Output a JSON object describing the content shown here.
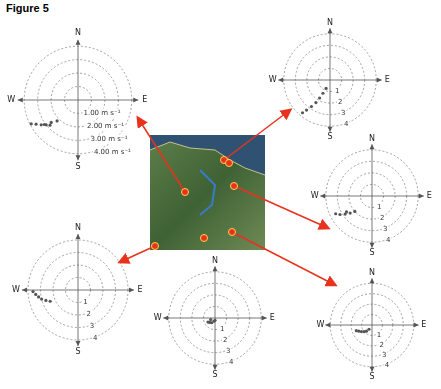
{
  "figure_label": "Figure 5",
  "chart_data": [
    {
      "type": "polar_scatter",
      "compass": [
        "N",
        "E",
        "S",
        "W"
      ],
      "rlim": [
        0,
        4
      ],
      "rticks": [
        {
          "value": 1,
          "label": "1.00 m s⁻¹"
        },
        {
          "value": 2,
          "label": "2.00 m s⁻¹"
        },
        {
          "value": 3,
          "label": "3.00 m s⁻¹"
        },
        {
          "value": 4,
          "label": "4.00 m s⁻¹"
        }
      ],
      "theta": [
        225,
        230,
        232,
        236,
        240,
        243,
        228,
        234
      ],
      "r": [
        2.2,
        2.6,
        3.0,
        3.3,
        3.6,
        3.9,
        2.8,
        3.1
      ],
      "color": "#555555",
      "marker": "circle",
      "grid": true
    },
    {
      "type": "polar_scatter",
      "compass": [
        "N",
        "E",
        "S",
        "W"
      ],
      "rlim": [
        0,
        4
      ],
      "rticks": [
        1,
        2,
        3,
        4
      ],
      "theta": [
        205,
        208,
        210,
        212,
        215,
        218,
        220
      ],
      "r": [
        0.8,
        1.3,
        1.8,
        2.3,
        2.8,
        3.3,
        3.7
      ],
      "color": "#555555",
      "marker": "circle",
      "grid": true
    },
    {
      "type": "polar_scatter",
      "compass": [
        "N",
        "E",
        "S",
        "W"
      ],
      "rlim": [
        0,
        4
      ],
      "rticks": [
        1,
        2,
        3,
        4
      ],
      "theta": [
        228,
        232,
        236,
        240,
        244,
        238
      ],
      "r": [
        2.0,
        2.4,
        2.8,
        3.2,
        3.5,
        2.6
      ],
      "color": "#555555",
      "marker": "circle",
      "grid": true
    },
    {
      "type": "polar_scatter",
      "compass": [
        "N",
        "E",
        "S",
        "W"
      ],
      "rlim": [
        0,
        4
      ],
      "rticks": [
        1,
        2,
        3,
        4
      ],
      "theta": [
        248,
        252,
        256,
        260,
        264,
        268
      ],
      "r": [
        2.4,
        2.7,
        3.0,
        3.2,
        3.4,
        3.6
      ],
      "color": "#555555",
      "marker": "circle",
      "grid": true
    },
    {
      "type": "polar_scatter",
      "compass": [
        "N",
        "E",
        "S",
        "W"
      ],
      "rlim": [
        0,
        4
      ],
      "rticks": [
        1,
        2,
        3,
        4
      ],
      "theta": [
        200,
        215,
        230,
        250,
        180,
        240
      ],
      "r": [
        0.3,
        0.5,
        0.6,
        0.4,
        0.2,
        0.7
      ],
      "color": "#555555",
      "marker": "circle",
      "grid": true
    },
    {
      "type": "polar_scatter",
      "compass": [
        "N",
        "E",
        "S",
        "W"
      ],
      "rlim": [
        0,
        4
      ],
      "rticks": [
        1,
        2,
        3,
        4
      ],
      "theta": [
        215,
        222,
        230,
        238,
        245,
        250
      ],
      "r": [
        0.5,
        0.8,
        1.0,
        1.2,
        1.4,
        1.6
      ],
      "color": "#555555",
      "marker": "circle",
      "grid": true
    }
  ]
}
